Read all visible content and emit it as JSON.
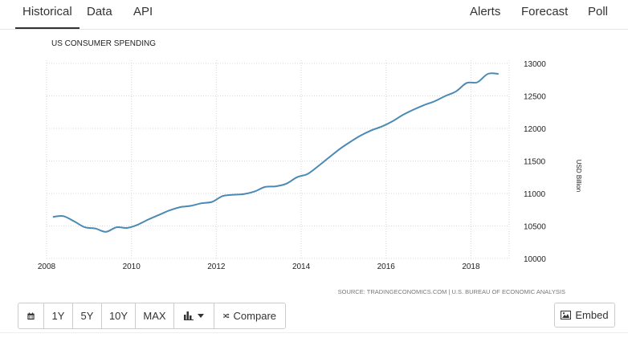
{
  "tabs_left": [
    {
      "label": "Historical",
      "name": "tab-historical",
      "active": true
    },
    {
      "label": "Data",
      "name": "tab-data",
      "active": false
    },
    {
      "label": "API",
      "name": "tab-api",
      "active": false
    }
  ],
  "tabs_right": [
    {
      "label": "Alerts",
      "name": "tab-alerts"
    },
    {
      "label": "Forecast",
      "name": "tab-forecast"
    },
    {
      "label": "Poll",
      "name": "tab-poll"
    }
  ],
  "chart_data": {
    "type": "line",
    "title": "US CONSUMER SPENDING",
    "ylabel": "USD Billion",
    "xlabel": "",
    "source": "SOURCE: TRADINGECONOMICS.COM | U.S. BUREAU OF ECONOMIC ANALYSIS",
    "xlim": [
      2008,
      2018.9
    ],
    "ylim": [
      10000,
      13000
    ],
    "x_ticks": [
      "2008",
      "2010",
      "2012",
      "2014",
      "2016",
      "2018"
    ],
    "y_ticks": [
      "13000",
      "12500",
      "12000",
      "11500",
      "11000",
      "10500",
      "10000"
    ],
    "line_color": "#4a8ab4",
    "series": [
      {
        "name": "US Consumer Spending",
        "x": [
          2008.15,
          2008.4,
          2008.65,
          2008.9,
          2009.15,
          2009.4,
          2009.65,
          2009.9,
          2010.15,
          2010.4,
          2010.65,
          2010.9,
          2011.15,
          2011.4,
          2011.65,
          2011.9,
          2012.15,
          2012.4,
          2012.65,
          2012.9,
          2013.15,
          2013.4,
          2013.65,
          2013.9,
          2014.15,
          2014.4,
          2014.65,
          2014.9,
          2015.15,
          2015.4,
          2015.65,
          2015.9,
          2016.15,
          2016.4,
          2016.65,
          2016.9,
          2017.15,
          2017.4,
          2017.65,
          2017.9,
          2018.15,
          2018.4,
          2018.65
        ],
        "values": [
          10640,
          10650,
          10570,
          10480,
          10460,
          10410,
          10480,
          10470,
          10520,
          10600,
          10670,
          10740,
          10790,
          10810,
          10850,
          10870,
          10960,
          10980,
          10990,
          11030,
          11100,
          11110,
          11150,
          11250,
          11300,
          11420,
          11550,
          11680,
          11790,
          11890,
          11970,
          12030,
          12110,
          12210,
          12290,
          12360,
          12420,
          12500,
          12570,
          12700,
          12710,
          12840,
          12840
        ]
      }
    ]
  },
  "toolbar": {
    "items": [
      {
        "label": "",
        "icon": "calendar-icon",
        "name": "calendar-button"
      },
      {
        "label": "1Y",
        "name": "range-1y-button"
      },
      {
        "label": "5Y",
        "name": "range-5y-button"
      },
      {
        "label": "10Y",
        "name": "range-10y-button"
      },
      {
        "label": "MAX",
        "name": "range-max-button"
      },
      {
        "label": "",
        "icon": "bar-chart-icon",
        "name": "chart-type-button",
        "caret": true
      },
      {
        "label": "Compare",
        "icon": "shuffle-icon",
        "name": "compare-button"
      }
    ],
    "embed_label": "Embed"
  }
}
